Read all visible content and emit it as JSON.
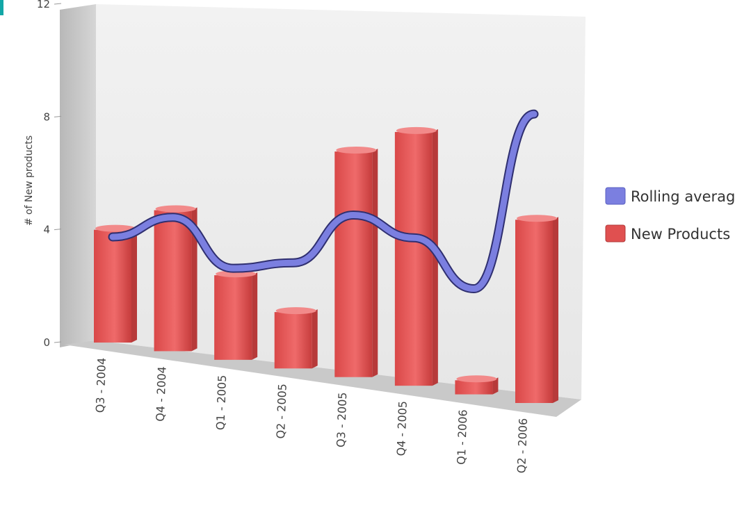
{
  "chart_data": {
    "type": "bar",
    "title": "",
    "xlabel": "",
    "ylabel": "# of New products",
    "ylim": [
      0,
      12
    ],
    "yticks": [
      0,
      4,
      8,
      12
    ],
    "categories": [
      "Q3 - 2004",
      "Q4 - 2004",
      "Q1 - 2005",
      "Q2 - 2005",
      "Q3 - 2005",
      "Q4 - 2005",
      "Q1 - 2006",
      "Q2 - 2006"
    ],
    "series": [
      {
        "name": "New Products",
        "type": "bar",
        "color": "#e05050",
        "values": [
          4,
          5,
          3,
          2,
          8,
          9,
          0.5,
          6.5
        ]
      },
      {
        "name": "Rolling averag",
        "type": "line",
        "color": "#7b7fe0",
        "values": [
          3.5,
          4.5,
          3,
          3.5,
          5.5,
          5,
          3.5,
          10
        ]
      }
    ],
    "legend_position": "right",
    "grid": false,
    "view": "3d-perspective"
  }
}
